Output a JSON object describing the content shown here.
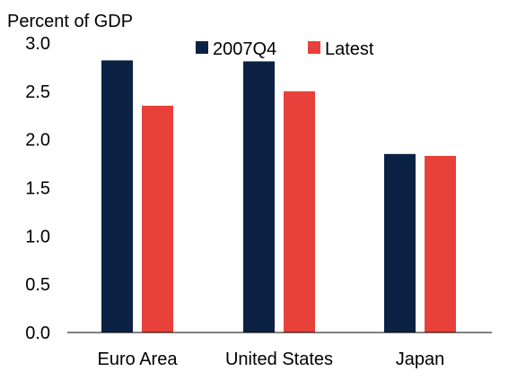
{
  "chart_data": {
    "type": "bar",
    "unit_label": "Percent of GDP",
    "categories": [
      "Euro Area",
      "United States",
      "Japan"
    ],
    "series": [
      {
        "name": "2007Q4",
        "color": "#0b2244",
        "values": [
          2.82,
          2.81,
          1.85
        ]
      },
      {
        "name": "Latest",
        "color": "#e8403a",
        "values": [
          2.35,
          2.5,
          1.83
        ]
      }
    ],
    "ylim": [
      0,
      3.0
    ],
    "yticks": [
      "0.0",
      "0.5",
      "1.0",
      "1.5",
      "2.0",
      "2.5",
      "3.0"
    ],
    "grid": false,
    "legend_position": "top"
  }
}
